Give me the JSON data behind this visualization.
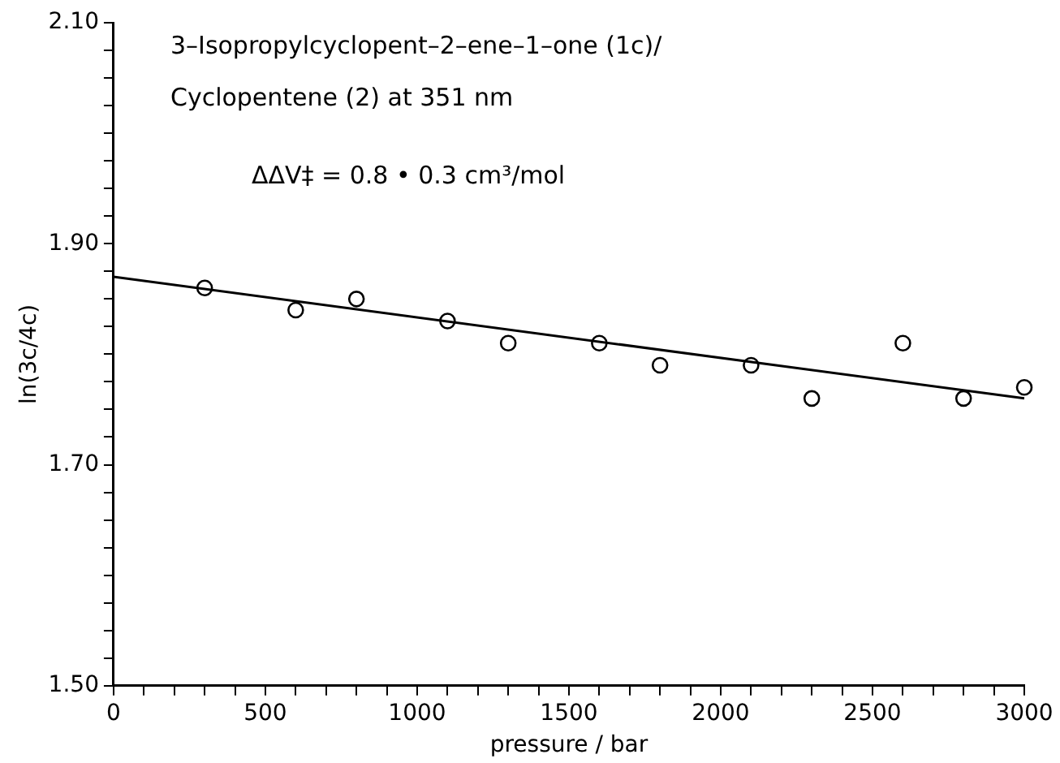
{
  "chart_data": {
    "type": "scatter",
    "xlabel": "pressure / bar",
    "ylabel": "ln(3c/4c)",
    "annotations": [
      "3–Isopropylcyclopent–2–ene–1–one (1c)/",
      "Cyclopentene (2) at 351 nm",
      "ΔΔV‡ = 0.8 • 0.3 cm³/mol"
    ],
    "series": [
      {
        "color": "#000000",
        "marker": "circle",
        "x": [
          300,
          600,
          800,
          1100,
          1300,
          1600,
          1800,
          2100,
          2300,
          2600,
          2800,
          3000
        ],
        "values": [
          1.86,
          1.84,
          1.85,
          1.83,
          1.81,
          1.81,
          1.79,
          1.79,
          1.76,
          1.81,
          1.76,
          1.77
        ]
      },
      {
        "type": "line",
        "color": "#000000",
        "marker": "none",
        "x": [
          0,
          3000
        ],
        "values": [
          1.87,
          1.76
        ]
      }
    ],
    "xlim": [
      0,
      3000
    ],
    "xticks": [
      0,
      {
        "value": 100,
        "label": null
      },
      {
        "value": 200,
        "label": null
      },
      {
        "value": 300,
        "label": null
      },
      {
        "value": 400,
        "label": null
      },
      500,
      {
        "value": 600,
        "label": null
      },
      {
        "value": 700,
        "label": null
      },
      {
        "value": 800,
        "label": null
      },
      {
        "value": 900,
        "label": null
      },
      1000,
      {
        "value": 1100,
        "label": null
      },
      {
        "value": 1200,
        "label": null
      },
      {
        "value": 1300,
        "label": null
      },
      {
        "value": 1400,
        "label": null
      },
      1500,
      {
        "value": 1600,
        "label": null
      },
      {
        "value": 1700,
        "label": null
      },
      {
        "value": 1800,
        "label": null
      },
      {
        "value": 1900,
        "label": null
      },
      2000,
      {
        "value": 2100,
        "label": null
      },
      {
        "value": 2200,
        "label": null
      },
      {
        "value": 2300,
        "label": null
      },
      {
        "value": 2400,
        "label": null
      },
      2500,
      {
        "value": 2600,
        "label": null
      },
      {
        "value": 2700,
        "label": null
      },
      {
        "value": 2800,
        "label": null
      },
      {
        "value": 2900,
        "label": null
      },
      3000
    ],
    "ylim": [
      1.5,
      2.1
    ],
    "yticks": [
      {
        "value": 1.5,
        "label": "1.50"
      },
      {
        "value": 1.525,
        "label": null
      },
      {
        "value": 1.55,
        "label": null
      },
      {
        "value": 1.575,
        "label": null
      },
      {
        "value": 1.6,
        "label": null
      },
      {
        "value": 1.625,
        "label": null
      },
      {
        "value": 1.65,
        "label": null
      },
      {
        "value": 1.675,
        "label": null
      },
      {
        "value": 1.7,
        "label": "1.70"
      },
      {
        "value": 1.725,
        "label": null
      },
      {
        "value": 1.75,
        "label": null
      },
      {
        "value": 1.775,
        "label": null
      },
      {
        "value": 1.8,
        "label": null
      },
      {
        "value": 1.825,
        "label": null
      },
      {
        "value": 1.85,
        "label": null
      },
      {
        "value": 1.875,
        "label": null
      },
      {
        "value": 1.9,
        "label": "1.90"
      },
      {
        "value": 1.925,
        "label": null
      },
      {
        "value": 1.95,
        "label": null
      },
      {
        "value": 1.975,
        "label": null
      },
      {
        "value": 2.0,
        "label": null
      },
      {
        "value": 2.025,
        "label": null
      },
      {
        "value": 2.05,
        "label": null
      },
      {
        "value": 2.075,
        "label": null
      },
      {
        "value": 2.1,
        "label": "2.10"
      }
    ],
    "grid": false,
    "legend": false
  }
}
